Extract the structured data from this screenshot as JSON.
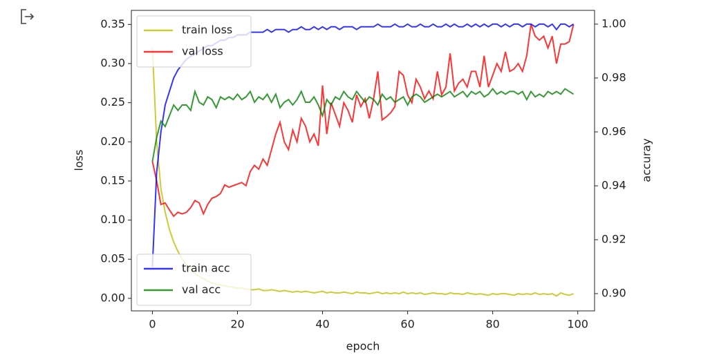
{
  "chart_data": {
    "type": "line",
    "x_label": "epoch",
    "y_label": "loss",
    "y2_label": "accuray",
    "x": [
      0,
      1,
      2,
      3,
      4,
      5,
      6,
      7,
      8,
      9,
      10,
      11,
      12,
      13,
      14,
      15,
      16,
      17,
      18,
      19,
      20,
      21,
      22,
      23,
      24,
      25,
      26,
      27,
      28,
      29,
      30,
      31,
      32,
      33,
      34,
      35,
      36,
      37,
      38,
      39,
      40,
      41,
      42,
      43,
      44,
      45,
      46,
      47,
      48,
      49,
      50,
      51,
      52,
      53,
      54,
      55,
      56,
      57,
      58,
      59,
      60,
      61,
      62,
      63,
      64,
      65,
      66,
      67,
      68,
      69,
      70,
      71,
      72,
      73,
      74,
      75,
      76,
      77,
      78,
      79,
      80,
      81,
      82,
      83,
      84,
      85,
      86,
      87,
      88,
      89,
      90,
      91,
      92,
      93,
      94,
      95,
      96,
      97,
      98,
      99
    ],
    "xlim": [
      -4.95,
      103.95
    ],
    "xticks": [
      0,
      20,
      40,
      60,
      80,
      100
    ],
    "ylim": [
      -0.016,
      0.368
    ],
    "yticks": [
      {
        "value": 0,
        "label": "0.00"
      },
      {
        "value": 0.05,
        "label": "0.05"
      },
      {
        "value": 0.1,
        "label": "0.10"
      },
      {
        "value": 0.15,
        "label": "0.15"
      },
      {
        "value": 0.2,
        "label": "0.20"
      },
      {
        "value": 0.25,
        "label": "0.25"
      },
      {
        "value": 0.3,
        "label": "0.30"
      },
      {
        "value": 0.35,
        "label": "0.35"
      }
    ],
    "y2lim": [
      0.8936,
      1.0051
    ],
    "y2ticks": [
      {
        "value": 0.9,
        "label": "0.90"
      },
      {
        "value": 0.92,
        "label": "0.92"
      },
      {
        "value": 0.94,
        "label": "0.94"
      },
      {
        "value": 0.96,
        "label": "0.96"
      },
      {
        "value": 0.98,
        "label": "0.98"
      },
      {
        "value": 1,
        "label": "1.00"
      }
    ],
    "legend": {
      "y": "upper left",
      "y2": "lower left"
    },
    "series": [
      {
        "name": "train loss",
        "color": "#bfbf00",
        "axis": "y",
        "values": [
          0.32,
          0.2,
          0.14,
          0.11,
          0.088,
          0.072,
          0.06,
          0.05,
          0.043,
          0.037,
          0.032,
          0.028,
          0.025,
          0.022,
          0.02,
          0.018,
          0.017,
          0.016,
          0.015,
          0.014,
          0.013,
          0.013,
          0.012,
          0.011,
          0.011,
          0.012,
          0.01,
          0.01,
          0.011,
          0.01,
          0.009,
          0.01,
          0.009,
          0.008,
          0.009,
          0.008,
          0.009,
          0.008,
          0.007,
          0.008,
          0.009,
          0.007,
          0.008,
          0.007,
          0.007,
          0.008,
          0.007,
          0.006,
          0.008,
          0.007,
          0.007,
          0.006,
          0.007,
          0.008,
          0.006,
          0.007,
          0.006,
          0.007,
          0.006,
          0.008,
          0.006,
          0.007,
          0.006,
          0.007,
          0.005,
          0.006,
          0.007,
          0.006,
          0.006,
          0.005,
          0.007,
          0.006,
          0.006,
          0.005,
          0.007,
          0.006,
          0.005,
          0.006,
          0.005,
          0.004,
          0.006,
          0.005,
          0.006,
          0.006,
          0.005,
          0.004,
          0.006,
          0.005,
          0.006,
          0.005,
          0.007,
          0.005,
          0.006,
          0.005,
          0.006,
          0.003,
          0.007,
          0.005,
          0.004,
          0.006
        ]
      },
      {
        "name": "val loss",
        "color": "#ff0000",
        "axis": "y",
        "values": [
          0.175,
          0.15,
          0.12,
          0.122,
          0.113,
          0.105,
          0.11,
          0.108,
          0.11,
          0.116,
          0.125,
          0.122,
          0.108,
          0.12,
          0.128,
          0.13,
          0.134,
          0.145,
          0.142,
          0.144,
          0.146,
          0.148,
          0.144,
          0.162,
          0.17,
          0.165,
          0.178,
          0.17,
          0.19,
          0.21,
          0.225,
          0.2,
          0.19,
          0.215,
          0.2,
          0.23,
          0.22,
          0.2,
          0.21,
          0.195,
          0.272,
          0.21,
          0.25,
          0.235,
          0.22,
          0.25,
          0.24,
          0.225,
          0.26,
          0.245,
          0.255,
          0.23,
          0.255,
          0.29,
          0.228,
          0.232,
          0.237,
          0.245,
          0.29,
          0.285,
          0.26,
          0.25,
          0.28,
          0.27,
          0.255,
          0.265,
          0.255,
          0.29,
          0.26,
          0.27,
          0.313,
          0.265,
          0.275,
          0.28,
          0.27,
          0.29,
          0.29,
          0.27,
          0.31,
          0.27,
          0.285,
          0.3,
          0.29,
          0.315,
          0.29,
          0.293,
          0.3,
          0.29,
          0.31,
          0.35,
          0.335,
          0.33,
          0.335,
          0.32,
          0.335,
          0.3,
          0.325,
          0.325,
          0.328,
          0.35
        ]
      },
      {
        "name": "train acc",
        "color": "#0000ff",
        "axis": "y2",
        "values": [
          0.91,
          0.945,
          0.96,
          0.97,
          0.975,
          0.98,
          0.983,
          0.985,
          0.987,
          0.988,
          0.989,
          0.99,
          0.991,
          0.992,
          0.992,
          0.993,
          0.994,
          0.994,
          0.995,
          0.995,
          0.996,
          0.996,
          0.996,
          0.997,
          0.997,
          0.997,
          0.997,
          0.998,
          0.997,
          0.998,
          0.998,
          0.998,
          0.997,
          0.998,
          0.998,
          0.999,
          0.998,
          0.998,
          0.999,
          0.998,
          0.999,
          0.998,
          0.999,
          0.999,
          0.998,
          0.999,
          0.999,
          0.999,
          0.998,
          0.999,
          0.999,
          0.999,
          0.999,
          1.0,
          0.999,
          0.999,
          0.999,
          1.0,
          0.999,
          0.999,
          1.0,
          0.999,
          0.999,
          1.0,
          0.999,
          0.999,
          1.0,
          0.999,
          0.999,
          1.0,
          0.999,
          1.0,
          0.999,
          0.999,
          1.0,
          0.999,
          1.0,
          0.999,
          1.0,
          0.999,
          1.0,
          1.0,
          0.999,
          1.0,
          0.999,
          1.0,
          1.0,
          0.999,
          1.0,
          1.0,
          0.999,
          1.0,
          1.0,
          0.999,
          1.0,
          0.998,
          1.0,
          1.0,
          0.999,
          1.0
        ]
      },
      {
        "name": "val acc",
        "color": "#008000",
        "axis": "y2",
        "values": [
          0.949,
          0.958,
          0.964,
          0.962,
          0.966,
          0.97,
          0.968,
          0.97,
          0.97,
          0.968,
          0.975,
          0.971,
          0.97,
          0.973,
          0.972,
          0.969,
          0.973,
          0.972,
          0.973,
          0.972,
          0.974,
          0.972,
          0.973,
          0.975,
          0.971,
          0.973,
          0.972,
          0.974,
          0.971,
          0.974,
          0.969,
          0.971,
          0.972,
          0.97,
          0.972,
          0.975,
          0.971,
          0.971,
          0.973,
          0.97,
          0.966,
          0.972,
          0.97,
          0.973,
          0.972,
          0.975,
          0.973,
          0.972,
          0.975,
          0.973,
          0.971,
          0.973,
          0.972,
          0.97,
          0.974,
          0.972,
          0.973,
          0.971,
          0.972,
          0.973,
          0.97,
          0.973,
          0.974,
          0.973,
          0.971,
          0.972,
          0.973,
          0.974,
          0.973,
          0.974,
          0.975,
          0.973,
          0.974,
          0.975,
          0.973,
          0.975,
          0.974,
          0.975,
          0.973,
          0.974,
          0.976,
          0.974,
          0.975,
          0.974,
          0.975,
          0.975,
          0.974,
          0.975,
          0.972,
          0.975,
          0.973,
          0.974,
          0.973,
          0.975,
          0.974,
          0.975,
          0.974,
          0.976,
          0.975,
          0.974
        ]
      }
    ]
  }
}
